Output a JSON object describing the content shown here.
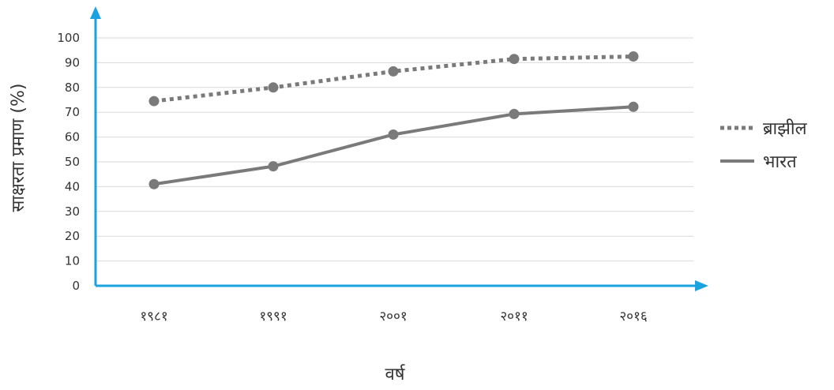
{
  "chart_data": {
    "type": "line",
    "title": "",
    "xlabel": "वर्ष",
    "ylabel": "साक्षरता प्रमाण (%)",
    "categories": [
      "१९८१",
      "१९९१",
      "२००१",
      "२०११",
      "२०१६"
    ],
    "ylim": [
      0,
      100
    ],
    "yticks": [
      "0",
      "10",
      "20",
      "30",
      "40",
      "50",
      "60",
      "70",
      "80",
      "90",
      "100"
    ],
    "grid": true,
    "legend_position": "right",
    "series": [
      {
        "name": "ब्राझील",
        "style": "dotted",
        "values": [
          74.5,
          80,
          86.5,
          91.5,
          92.5
        ]
      },
      {
        "name": "भारत",
        "style": "solid",
        "values": [
          41,
          48.2,
          61,
          69.3,
          72.2
        ]
      }
    ],
    "colors": {
      "series": "#7a7a7a",
      "axis": "#1aa3e0",
      "grid": "#d9d9d9",
      "text": "#333333"
    }
  }
}
